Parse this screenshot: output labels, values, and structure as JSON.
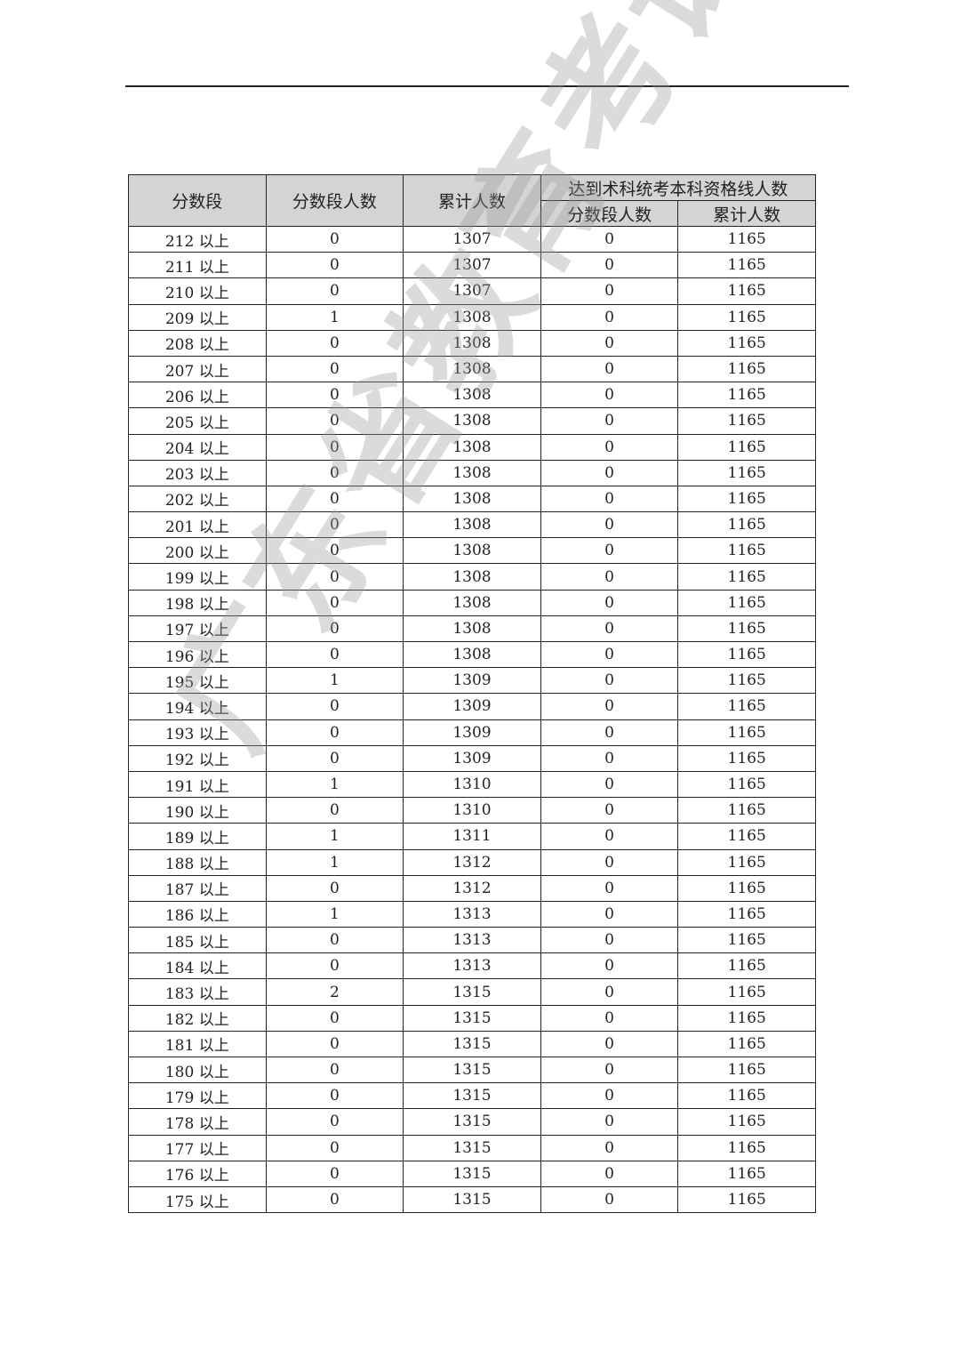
{
  "header": {
    "col_score": "分数段",
    "col_count": "分数段人数",
    "col_cum": "累计人数",
    "group_qualified": "达到术科统考本科资格线人数",
    "sub_count": "分数段人数",
    "sub_cum": "累计人数"
  },
  "watermark": "广东省教育考试院",
  "rows": [
    [
      "212 以上",
      "0",
      "1307",
      "0",
      "1165"
    ],
    [
      "211 以上",
      "0",
      "1307",
      "0",
      "1165"
    ],
    [
      "210 以上",
      "0",
      "1307",
      "0",
      "1165"
    ],
    [
      "209 以上",
      "1",
      "1308",
      "0",
      "1165"
    ],
    [
      "208 以上",
      "0",
      "1308",
      "0",
      "1165"
    ],
    [
      "207 以上",
      "0",
      "1308",
      "0",
      "1165"
    ],
    [
      "206 以上",
      "0",
      "1308",
      "0",
      "1165"
    ],
    [
      "205 以上",
      "0",
      "1308",
      "0",
      "1165"
    ],
    [
      "204 以上",
      "0",
      "1308",
      "0",
      "1165"
    ],
    [
      "203 以上",
      "0",
      "1308",
      "0",
      "1165"
    ],
    [
      "202 以上",
      "0",
      "1308",
      "0",
      "1165"
    ],
    [
      "201 以上",
      "0",
      "1308",
      "0",
      "1165"
    ],
    [
      "200 以上",
      "0",
      "1308",
      "0",
      "1165"
    ],
    [
      "199 以上",
      "0",
      "1308",
      "0",
      "1165"
    ],
    [
      "198 以上",
      "0",
      "1308",
      "0",
      "1165"
    ],
    [
      "197 以上",
      "0",
      "1308",
      "0",
      "1165"
    ],
    [
      "196 以上",
      "0",
      "1308",
      "0",
      "1165"
    ],
    [
      "195 以上",
      "1",
      "1309",
      "0",
      "1165"
    ],
    [
      "194 以上",
      "0",
      "1309",
      "0",
      "1165"
    ],
    [
      "193 以上",
      "0",
      "1309",
      "0",
      "1165"
    ],
    [
      "192 以上",
      "0",
      "1309",
      "0",
      "1165"
    ],
    [
      "191 以上",
      "1",
      "1310",
      "0",
      "1165"
    ],
    [
      "190 以上",
      "0",
      "1310",
      "0",
      "1165"
    ],
    [
      "189 以上",
      "1",
      "1311",
      "0",
      "1165"
    ],
    [
      "188 以上",
      "1",
      "1312",
      "0",
      "1165"
    ],
    [
      "187 以上",
      "0",
      "1312",
      "0",
      "1165"
    ],
    [
      "186 以上",
      "1",
      "1313",
      "0",
      "1165"
    ],
    [
      "185 以上",
      "0",
      "1313",
      "0",
      "1165"
    ],
    [
      "184 以上",
      "0",
      "1313",
      "0",
      "1165"
    ],
    [
      "183 以上",
      "2",
      "1315",
      "0",
      "1165"
    ],
    [
      "182 以上",
      "0",
      "1315",
      "0",
      "1165"
    ],
    [
      "181 以上",
      "0",
      "1315",
      "0",
      "1165"
    ],
    [
      "180 以上",
      "0",
      "1315",
      "0",
      "1165"
    ],
    [
      "179 以上",
      "0",
      "1315",
      "0",
      "1165"
    ],
    [
      "178 以上",
      "0",
      "1315",
      "0",
      "1165"
    ],
    [
      "177 以上",
      "0",
      "1315",
      "0",
      "1165"
    ],
    [
      "176 以上",
      "0",
      "1315",
      "0",
      "1165"
    ],
    [
      "175 以上",
      "0",
      "1315",
      "0",
      "1165"
    ]
  ]
}
